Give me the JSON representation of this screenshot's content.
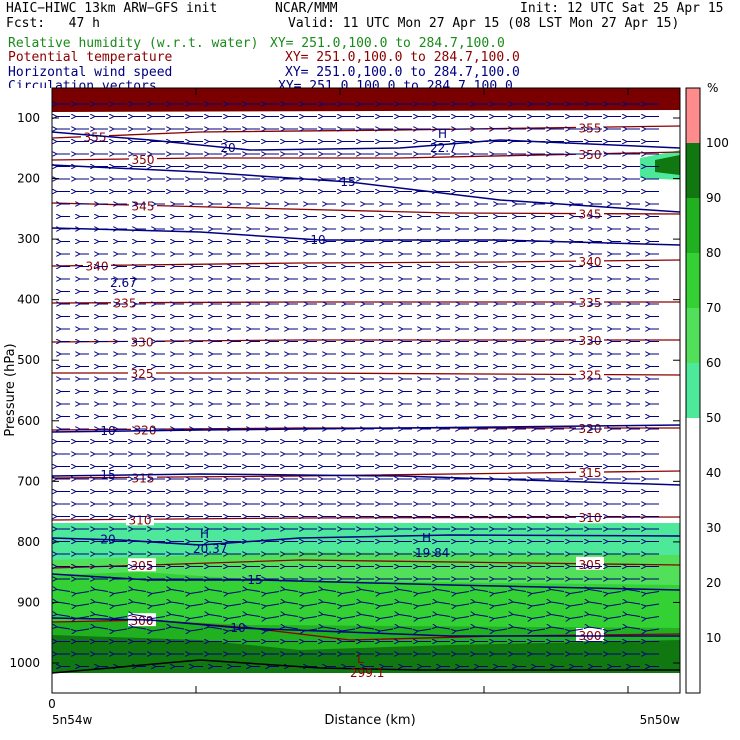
{
  "header": {
    "model": "HAIC−HIWC 13km ARW−GFS init",
    "org": "NCAR/MMM",
    "init": "Init: 12 UTC Sat 25 Apr 15",
    "fcst": "Fcst:   47 h",
    "valid": "Valid: 11 UTC Mon 27 Apr 15 (08 LST Mon 27 Apr 15)",
    "fields": [
      {
        "name": "Relative humidity (w.r.t. water)",
        "xy": "XY= 251.0,100.0 to 284.7,100.0",
        "color": "#1a8a1a"
      },
      {
        "name": "Potential temperature",
        "xy": "XY= 251.0,100.0 to 284.7,100.0",
        "color": "#8b0000"
      },
      {
        "name": "Horizontal wind speed",
        "xy": "XY= 251.0,100.0 to 284.7,100.0",
        "color": "#000080"
      },
      {
        "name": "Circulation vectors",
        "xy": "XY= 251.0,100.0 to 284.7,100.0",
        "color": "#000080"
      }
    ]
  },
  "axes": {
    "ylabel": "Pressure (hPa)",
    "xlabel": "Distance (km)",
    "x_zero": "0",
    "x_left": "5n54w",
    "x_right": "5n50w",
    "colorbar_unit": "%"
  },
  "chart_data": {
    "type": "heatmap",
    "y_ticks": [
      100,
      200,
      300,
      400,
      500,
      600,
      700,
      800,
      900,
      1000
    ],
    "colorbar": {
      "levels": [
        10,
        20,
        30,
        40,
        50,
        60,
        70,
        80,
        90,
        100
      ],
      "colors": [
        "#ffffff",
        "#ffffff",
        "#ffffff",
        "#ffffff",
        "#ffffff",
        "#4de89a",
        "#52e05a",
        "#33d133",
        "#20b020",
        "#117711",
        "#ff8c8c"
      ]
    },
    "theta_contours": [
      {
        "value": 355,
        "label": "355"
      },
      {
        "value": 350,
        "label": "350"
      },
      {
        "value": 345,
        "label": "345"
      },
      {
        "value": 340,
        "label": "340"
      },
      {
        "value": 335,
        "label": "335"
      },
      {
        "value": 330,
        "label": "330"
      },
      {
        "value": 325,
        "label": "325"
      },
      {
        "value": 320,
        "label": "320"
      },
      {
        "value": 315,
        "label": "315"
      },
      {
        "value": 310,
        "label": "310"
      },
      {
        "value": 305,
        "label": "305"
      },
      {
        "value": 300,
        "label": "300"
      }
    ],
    "wind_contours": [
      {
        "value": 20,
        "label": "20"
      },
      {
        "value": 15,
        "label": "15"
      },
      {
        "value": 10,
        "label": "10"
      }
    ],
    "annotations": [
      {
        "label": "H",
        "value": "22.7"
      },
      {
        "label": "",
        "value": "2.67"
      },
      {
        "label": "H",
        "value": "20.37"
      },
      {
        "label": "H",
        "value": "19.84"
      },
      {
        "label": "L",
        "value": "299.1"
      }
    ]
  }
}
